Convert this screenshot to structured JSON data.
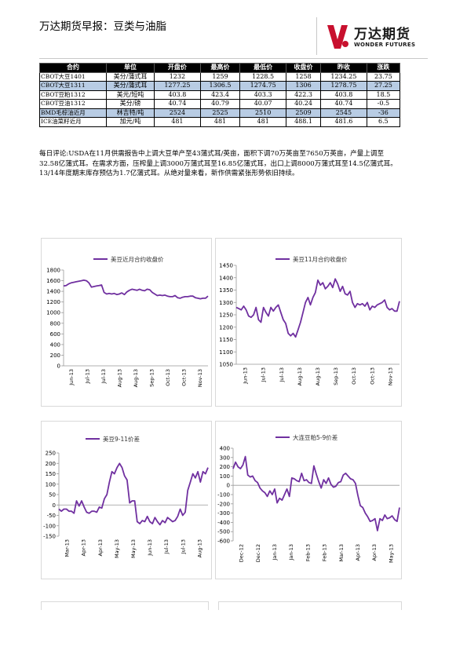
{
  "header": {
    "title": "万达期货早报：豆类与油脂",
    "logo_cn": "万达期货",
    "logo_en": "WONDER FUTURES"
  },
  "colors": {
    "series": "#7030a0",
    "table_header": "#000000",
    "row_alt": "#b8cce4"
  },
  "table": {
    "headers": [
      "合约",
      "单位",
      "开盘价",
      "最高价",
      "最低价",
      "收盘价",
      "昨收",
      "涨跌"
    ],
    "rows": [
      [
        "CBOT大豆1401",
        "美分/蒲式耳",
        "1232",
        "1259",
        "1228.5",
        "1258",
        "1234.25",
        "23.75"
      ],
      [
        "CBOT大豆1311",
        "美分/蒲式耳",
        "1277.25",
        "1306.5",
        "1274.75",
        "1306",
        "1278.75",
        "27.25"
      ],
      [
        "CBOT豆粕1312",
        "美元/短吨",
        "403.8",
        "423.4",
        "403.3",
        "422.3",
        "403.8",
        "18.5"
      ],
      [
        "CBOT豆油1312",
        "美分/磅",
        "40.74",
        "40.79",
        "40.07",
        "40.24",
        "40.74",
        "-0.5"
      ],
      [
        "BMD毛棕油近月",
        "林吉特/吨",
        "2524",
        "2525",
        "2510",
        "2509",
        "2545",
        "-36"
      ],
      [
        "ICE油菜籽近月",
        "加元/吨",
        "481",
        "481",
        "481",
        "488.1",
        "481.6",
        "6.5"
      ]
    ]
  },
  "comment": "每日评论:USDA在11月供需报告中上调大豆单产至43蒲式耳/英亩，面积下调70万英亩至7650万英亩，产量上调至32.58亿蒲式耳。在需求方面，压榨量上调3000万蒲式耳至16.85亿蒲式耳，出口上调8000万蒲式耳至14.5亿蒲式耳。13/14年度期末库存预估为1.7亿蒲式耳。从绝对量来看，新作供需紧张形势依旧持续。",
  "chart_data": [
    {
      "type": "line",
      "title": "美豆近月合约收盘价",
      "ylim": [
        0,
        1800
      ],
      "yticks": [
        0,
        200,
        400,
        600,
        800,
        1000,
        1200,
        1400,
        1600,
        1800
      ],
      "xticks": [
        "Jun-13",
        "Jul-13",
        "Jul-13",
        "Aug-13",
        "Aug-13",
        "Sep-13",
        "Oct-13",
        "Oct-13",
        "Nov-13"
      ],
      "series": [
        {
          "name": "美豆近月合约收盘价",
          "values": [
            1500,
            1510,
            1540,
            1560,
            1570,
            1580,
            1590,
            1600,
            1610,
            1600,
            1560,
            1480,
            1490,
            1500,
            1510,
            1520,
            1380,
            1350,
            1360,
            1350,
            1360,
            1340,
            1350,
            1370,
            1340,
            1390,
            1420,
            1440,
            1430,
            1420,
            1440,
            1420,
            1410,
            1440,
            1430,
            1380,
            1350,
            1320,
            1330,
            1320,
            1330,
            1310,
            1300,
            1300,
            1320,
            1280,
            1270,
            1290,
            1300,
            1300,
            1310,
            1310,
            1280,
            1270,
            1260,
            1270,
            1270,
            1310
          ]
        }
      ]
    },
    {
      "type": "line",
      "title": "美豆11月合约收盘价",
      "ylim": [
        1050,
        1450
      ],
      "yticks": [
        1050,
        1100,
        1150,
        1200,
        1250,
        1300,
        1350,
        1400,
        1450
      ],
      "xticks": [
        "Jun-13",
        "Jul-13",
        "Jul-13",
        "Aug-13",
        "Aug-13",
        "Sep-13",
        "Oct-13",
        "Oct-13",
        "Nov-13"
      ],
      "series": [
        {
          "name": "美豆11月合约收盘价",
          "values": [
            1280,
            1275,
            1270,
            1285,
            1270,
            1245,
            1240,
            1250,
            1280,
            1230,
            1220,
            1280,
            1260,
            1245,
            1280,
            1265,
            1280,
            1290,
            1260,
            1230,
            1215,
            1175,
            1165,
            1175,
            1160,
            1190,
            1220,
            1260,
            1300,
            1320,
            1290,
            1320,
            1340,
            1390,
            1370,
            1380,
            1355,
            1365,
            1380,
            1360,
            1395,
            1375,
            1345,
            1365,
            1335,
            1330,
            1345,
            1300,
            1280,
            1295,
            1290,
            1295,
            1285,
            1300,
            1270,
            1285,
            1280,
            1290,
            1295,
            1300,
            1310,
            1280,
            1270,
            1275,
            1265,
            1265,
            1305
          ]
        }
      ]
    },
    {
      "type": "line",
      "title": "美豆9-11价差",
      "ylim": [
        -150,
        250
      ],
      "yticks": [
        -150,
        -100,
        -50,
        0,
        50,
        100,
        150,
        200,
        250
      ],
      "xticks": [
        "Mar-13",
        "Apr-13",
        "Apr-13",
        "May-13",
        "May-13",
        "Jun-13",
        "Jul-13",
        "Jul-13",
        "Aug-13"
      ],
      "series": [
        {
          "name": "美豆9-11价差",
          "values": [
            -20,
            -30,
            -20,
            -20,
            -30,
            -30,
            -40,
            20,
            -5,
            20,
            -10,
            -35,
            -40,
            -30,
            -30,
            -35,
            -10,
            -15,
            30,
            50,
            110,
            160,
            150,
            180,
            200,
            180,
            140,
            120,
            10,
            20,
            20,
            -80,
            -90,
            -75,
            -80,
            -55,
            -80,
            -90,
            -60,
            -80,
            -95,
            -75,
            -85,
            -60,
            -70,
            -80,
            -75,
            -55,
            -20,
            -50,
            -35,
            70,
            110,
            150,
            130,
            160,
            110,
            160,
            150,
            180
          ]
        }
      ]
    },
    {
      "type": "line",
      "title": "大连豆粕5-9价差",
      "ylim": [
        -600,
        400
      ],
      "yticks": [
        -600,
        -500,
        -400,
        -300,
        -200,
        -100,
        0,
        100,
        200,
        300,
        400
      ],
      "xticks": [
        "Dec-12",
        "Dec-12",
        "Jan-13",
        "Jan-13",
        "Feb-13",
        "Feb-13",
        "Mar-13",
        "Apr-13",
        "Apr-13",
        "May-13"
      ],
      "series": [
        {
          "name": "大连豆粕5-9价差",
          "values": [
            180,
            250,
            200,
            180,
            220,
            310,
            110,
            90,
            100,
            50,
            30,
            -30,
            -60,
            -80,
            -120,
            -60,
            -100,
            -40,
            -190,
            -140,
            -160,
            -100,
            -40,
            -120,
            80,
            70,
            50,
            40,
            130,
            50,
            60,
            30,
            20,
            210,
            120,
            40,
            -30,
            60,
            20,
            80,
            10,
            -20,
            -10,
            30,
            40,
            110,
            130,
            100,
            70,
            60,
            20,
            -110,
            -220,
            -240,
            -300,
            -340,
            -390,
            -380,
            -360,
            -490,
            -360,
            -380,
            -320,
            -360,
            -350,
            -330,
            -370,
            -390,
            -240
          ]
        }
      ]
    }
  ],
  "footer_stubs": [
    "",
    ""
  ]
}
